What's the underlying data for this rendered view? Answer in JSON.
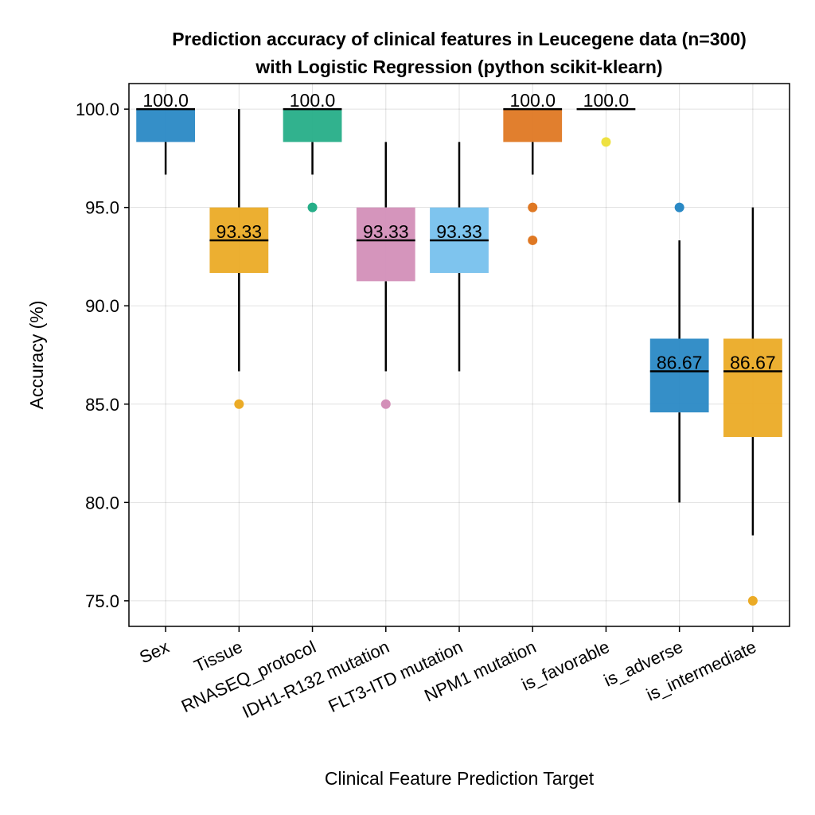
{
  "chart_data": {
    "type": "box",
    "title_lines": [
      "Prediction accuracy of clinical features in Leucegene data (n=300)",
      "with Logistic Regression (python scikit-klearn)"
    ],
    "xlabel": "Clinical Feature Prediction Target",
    "ylabel": "Accuracy (%)",
    "ylim": [
      73.7,
      101.3
    ],
    "yticks": [
      75.0,
      80.0,
      85.0,
      90.0,
      95.0,
      100.0
    ],
    "ytick_labels": [
      "75.0",
      "80.0",
      "85.0",
      "90.0",
      "95.0",
      "100.0"
    ],
    "grid": true,
    "categories": [
      "Sex",
      "Tissue",
      "RNASEQ_protocol",
      "IDH1-R132 mutation",
      "FLT3-ITD mutation",
      "NPM1 mutation",
      "is_favorable",
      "is_adverse",
      "is_intermediate"
    ],
    "boxes": [
      {
        "q1": 98.33,
        "median": 100.0,
        "q3": 100.0,
        "whisker_low": 96.67,
        "whisker_high": 100.0,
        "outliers": [],
        "median_label": "100.0",
        "color": "#2a89c5"
      },
      {
        "q1": 91.67,
        "median": 93.33,
        "q3": 95.0,
        "whisker_low": 86.67,
        "whisker_high": 100.0,
        "outliers": [
          85.0
        ],
        "median_label": "93.33",
        "color": "#ebab26"
      },
      {
        "q1": 98.33,
        "median": 100.0,
        "q3": 100.0,
        "whisker_low": 96.67,
        "whisker_high": 100.0,
        "outliers": [
          95.0
        ],
        "median_label": "100.0",
        "color": "#26ae88"
      },
      {
        "q1": 91.25,
        "median": 93.33,
        "q3": 95.0,
        "whisker_low": 86.67,
        "whisker_high": 98.33,
        "outliers": [
          85.0
        ],
        "median_label": "93.33",
        "color": "#d38fb8"
      },
      {
        "q1": 91.67,
        "median": 93.33,
        "q3": 95.0,
        "whisker_low": 86.67,
        "whisker_high": 98.33,
        "outliers": [],
        "median_label": "93.33",
        "color": "#77c1ed"
      },
      {
        "q1": 98.33,
        "median": 100.0,
        "q3": 100.0,
        "whisker_low": 96.67,
        "whisker_high": 100.0,
        "outliers": [
          95.0,
          93.33
        ],
        "median_label": "100.0",
        "color": "#df7823"
      },
      {
        "q1": 100.0,
        "median": 100.0,
        "q3": 100.0,
        "whisker_low": 100.0,
        "whisker_high": 100.0,
        "outliers": [
          98.33
        ],
        "median_label": "100.0",
        "color": "#eee141"
      },
      {
        "q1": 84.58,
        "median": 86.67,
        "q3": 88.33,
        "whisker_low": 80.0,
        "whisker_high": 93.33,
        "outliers": [
          95.0
        ],
        "median_label": "86.67",
        "color": "#2a89c5"
      },
      {
        "q1": 83.33,
        "median": 86.67,
        "q3": 88.33,
        "whisker_low": 78.33,
        "whisker_high": 95.0,
        "outliers": [
          75.0
        ],
        "median_label": "86.67",
        "color": "#ebab26"
      }
    ]
  }
}
